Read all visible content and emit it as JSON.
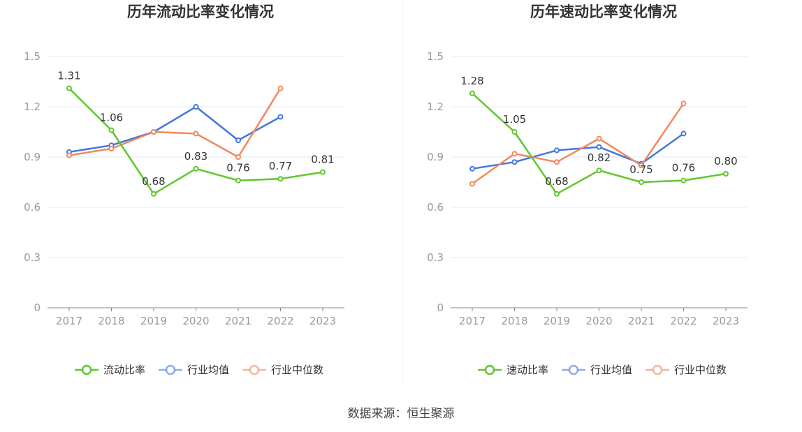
{
  "source_text": "数据来源：恒生聚源",
  "chart_data": [
    {
      "type": "line",
      "title": "历年流动比率变化情况",
      "x": [
        "2017",
        "2018",
        "2019",
        "2020",
        "2021",
        "2022",
        "2023"
      ],
      "ylim": [
        0,
        1.5
      ],
      "yticks": [
        "0",
        "0.3",
        "0.6",
        "0.9",
        "1.2",
        "1.5"
      ],
      "grid": true,
      "legend_position": "bottom",
      "series": [
        {
          "name": "流动比率",
          "color": "#5fc72d",
          "values": [
            1.31,
            1.06,
            0.68,
            0.83,
            0.76,
            0.77,
            0.81
          ],
          "labels": [
            "1.31",
            "1.06",
            "0.68",
            "0.83",
            "0.76",
            "0.77",
            "0.81"
          ]
        },
        {
          "name": "行业均值",
          "color": "#4177e0",
          "values": [
            0.93,
            0.97,
            1.05,
            1.2,
            1.0,
            1.14,
            null
          ]
        },
        {
          "name": "行业中位数",
          "color": "#f2885e",
          "values": [
            0.91,
            0.95,
            1.05,
            1.04,
            0.9,
            1.31,
            null
          ]
        }
      ]
    },
    {
      "type": "line",
      "title": "历年速动比率变化情况",
      "x": [
        "2017",
        "2018",
        "2019",
        "2020",
        "2021",
        "2022",
        "2023"
      ],
      "ylim": [
        0,
        1.5
      ],
      "yticks": [
        "0",
        "0.3",
        "0.6",
        "0.9",
        "1.2",
        "1.5"
      ],
      "grid": true,
      "legend_position": "bottom",
      "series": [
        {
          "name": "速动比率",
          "color": "#5fc72d",
          "values": [
            1.28,
            1.05,
            0.68,
            0.82,
            0.75,
            0.76,
            0.8
          ],
          "labels": [
            "1.28",
            "1.05",
            "0.68",
            "0.82",
            "0.75",
            "0.76",
            "0.80"
          ]
        },
        {
          "name": "行业均值",
          "color": "#4177e0",
          "values": [
            0.83,
            0.87,
            0.94,
            0.96,
            0.86,
            1.04,
            null
          ]
        },
        {
          "name": "行业中位数",
          "color": "#f2885e",
          "values": [
            0.74,
            0.92,
            0.87,
            1.01,
            0.85,
            1.22,
            null
          ]
        }
      ]
    }
  ]
}
